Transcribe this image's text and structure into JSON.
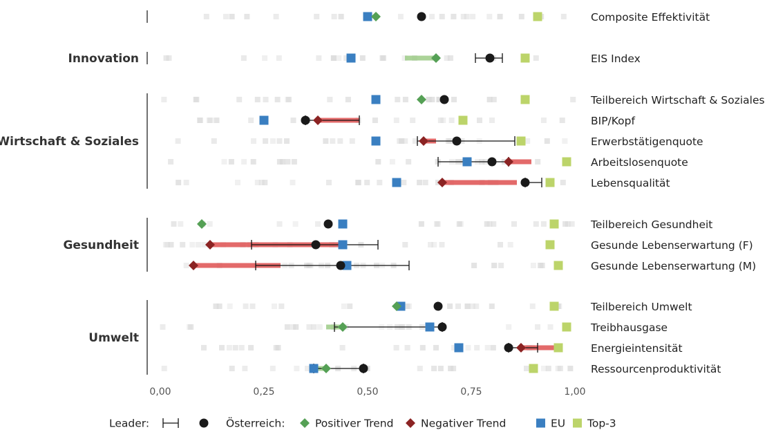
{
  "chart_data": {
    "type": "scatter",
    "x_ticks": [
      0,
      0.25,
      0.5,
      0.75,
      1.0
    ],
    "x_tick_labels": [
      "0,00",
      "0,25",
      "0,50",
      "0,75",
      "1,00"
    ],
    "xlim": [
      0,
      1
    ],
    "grid": false,
    "legend_position": "bottom",
    "colors": {
      "oesterreich": "#1a1a1a",
      "positive_trend": "#55a055",
      "negative_trend": "#8b2323",
      "eu": "#3a7fc1",
      "top3": "#bcd46a",
      "positive_band": "#9ccb86",
      "negative_band": "#e05a5a",
      "background_marks": "#d9d9d9"
    },
    "groups": [
      {
        "name": "",
        "rows": [
          "Composite Effektivität"
        ]
      },
      {
        "name": "Innovation",
        "rows": [
          "EIS Index"
        ]
      },
      {
        "name": "Wirtschaft & Soziales",
        "rows": [
          "Teilbereich Wirtschaft & Soziales",
          "BIP/Kopf",
          "Erwerbstätigenquote",
          "Arbeitslosenquote",
          "Lebensqualität"
        ]
      },
      {
        "name": "Gesundheit",
        "rows": [
          "Teilbereich Gesundheit",
          "Gesunde Lebenserwartung (F)",
          "Gesunde Lebenserwartung (M)"
        ]
      },
      {
        "name": "Umwelt",
        "rows": [
          "Teilbereich Umwelt",
          "Treibhausgase",
          "Energieintensität",
          "Ressourcenproduktivität"
        ]
      }
    ],
    "rows": [
      {
        "label": "Composite Effektivität",
        "austria": 0.63,
        "trend": {
          "type": "positive",
          "value": 0.52
        },
        "eu": 0.5,
        "top3": 0.91,
        "leader_range": null,
        "band": null
      },
      {
        "label": "EIS Index",
        "austria": 0.795,
        "trend": {
          "type": "positive",
          "value": 0.665
        },
        "eu": 0.46,
        "top3": 0.88,
        "leader_range": [
          0.76,
          0.825
        ],
        "band": [
          0.59,
          0.665
        ]
      },
      {
        "label": "Teilbereich Wirtschaft & Soziales",
        "austria": 0.685,
        "trend": {
          "type": "positive",
          "value": 0.63
        },
        "eu": 0.52,
        "top3": 0.88,
        "leader_range": null,
        "band": null
      },
      {
        "label": "BIP/Kopf",
        "austria": 0.35,
        "trend": {
          "type": "negative",
          "value": 0.38
        },
        "eu": 0.25,
        "top3": 0.73,
        "leader_range": [
          0.35,
          0.48
        ],
        "band": [
          0.38,
          0.48
        ]
      },
      {
        "label": "Erwerbstätigenquote",
        "austria": 0.715,
        "trend": {
          "type": "negative",
          "value": 0.635
        },
        "eu": 0.52,
        "top3": 0.87,
        "leader_range": [
          0.62,
          0.855
        ],
        "band": [
          0.635,
          0.665
        ]
      },
      {
        "label": "Arbeitslosenquote",
        "austria": 0.8,
        "trend": {
          "type": "negative",
          "value": 0.84
        },
        "eu": 0.74,
        "top3": 0.98,
        "leader_range": [
          0.67,
          0.84
        ],
        "band": [
          0.84,
          0.895
        ]
      },
      {
        "label": "Lebensqualität",
        "austria": 0.88,
        "trend": {
          "type": "negative",
          "value": 0.68
        },
        "eu": 0.57,
        "top3": 0.94,
        "leader_range": [
          0.88,
          0.92
        ],
        "band": [
          0.68,
          0.86
        ]
      },
      {
        "label": "Teilbereich Gesundheit",
        "austria": 0.405,
        "trend": {
          "type": "positive",
          "value": 0.1
        },
        "eu": 0.44,
        "top3": 0.95,
        "leader_range": null,
        "band": null
      },
      {
        "label": "Gesunde Lebenserwartung (F)",
        "austria": 0.375,
        "trend": {
          "type": "negative",
          "value": 0.12
        },
        "eu": 0.44,
        "top3": 0.94,
        "leader_range": [
          0.22,
          0.525
        ],
        "band": [
          0.12,
          0.43
        ]
      },
      {
        "label": "Gesunde Lebenserwartung (M)",
        "austria": 0.435,
        "trend": {
          "type": "negative",
          "value": 0.08
        },
        "eu": 0.45,
        "top3": 0.96,
        "leader_range": [
          0.23,
          0.6
        ],
        "band": [
          0.08,
          0.29
        ]
      },
      {
        "label": "Teilbereich Umwelt",
        "austria": 0.67,
        "trend": {
          "type": "positive",
          "value": 0.57
        },
        "eu": 0.58,
        "top3": 0.95,
        "leader_range": null,
        "band": null
      },
      {
        "label": "Treibhausgase",
        "austria": 0.68,
        "trend": {
          "type": "positive",
          "value": 0.44
        },
        "eu": 0.65,
        "top3": 0.98,
        "leader_range": [
          0.42,
          0.68
        ],
        "band": [
          0.4,
          0.44
        ]
      },
      {
        "label": "Energieintensität",
        "austria": 0.84,
        "trend": {
          "type": "negative",
          "value": 0.87
        },
        "eu": 0.72,
        "top3": 0.96,
        "leader_range": [
          0.84,
          0.91
        ],
        "band": [
          0.87,
          0.96
        ]
      },
      {
        "label": "Ressourcenproduktivität",
        "austria": 0.49,
        "trend": {
          "type": "positive",
          "value": 0.4
        },
        "eu": 0.37,
        "top3": 0.9,
        "leader_range": [
          0.37,
          0.49
        ],
        "band": [
          0.37,
          0.4
        ]
      }
    ],
    "legend": {
      "leader": "Leader:",
      "austria": "Österreich:",
      "positive": "Positiver Trend",
      "negative": "Negativer Trend",
      "eu": "EU",
      "top3": "Top-3"
    }
  }
}
